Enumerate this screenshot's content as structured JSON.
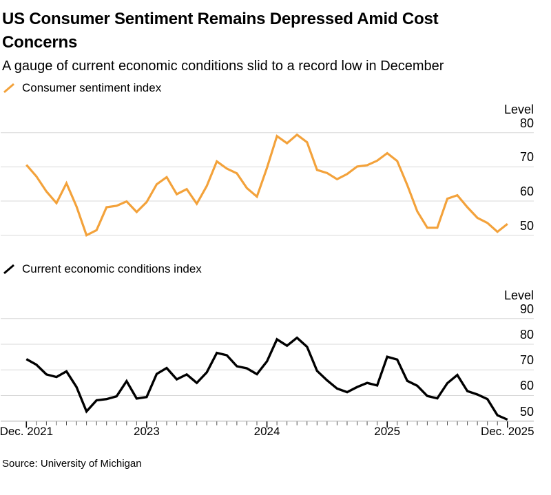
{
  "header": {
    "title": "US Consumer Sentiment Remains Depressed Amid Cost Concerns",
    "subtitle": "A gauge of current economic conditions slid to a record low in December"
  },
  "source": "Source: University of Michigan",
  "colors": {
    "sentiment_line": "#F3A23B",
    "conditions_line": "#000000",
    "gridline": "#D8D8D8",
    "axis_baseline": "#A8A8A8",
    "tick_minor": "#4D4D4D",
    "tick_major": "#111111"
  },
  "chart_data": {
    "type": "line",
    "categories": [
      "Dec 2021",
      "Jan 2022",
      "Feb 2022",
      "Mar 2022",
      "Apr 2022",
      "May 2022",
      "Jun 2022",
      "Jul 2022",
      "Aug 2022",
      "Sep 2022",
      "Oct 2022",
      "Nov 2022",
      "Dec 2022",
      "Jan 2023",
      "Feb 2023",
      "Mar 2023",
      "Apr 2023",
      "May 2023",
      "Jun 2023",
      "Jul 2023",
      "Aug 2023",
      "Sep 2023",
      "Oct 2023",
      "Nov 2023",
      "Dec 2023",
      "Jan 2024",
      "Feb 2024",
      "Mar 2024",
      "Apr 2024",
      "May 2024",
      "Jun 2024",
      "Jul 2024",
      "Aug 2024",
      "Sep 2024",
      "Oct 2024",
      "Nov 2024",
      "Dec 2024",
      "Jan 2025",
      "Feb 2025",
      "Mar 2025",
      "Apr 2025",
      "May 2025",
      "Jun 2025",
      "Jul 2025",
      "Aug 2025",
      "Sep 2025",
      "Oct 2025",
      "Nov 2025",
      "Dec 2025"
    ],
    "x_tick_labels": [
      {
        "label": "Dec. 2021",
        "index": 0
      },
      {
        "label": "2023",
        "index": 12
      },
      {
        "label": "2024",
        "index": 24
      },
      {
        "label": "2025",
        "index": 36
      },
      {
        "label": "Dec. 2025",
        "index": 48
      }
    ],
    "charts": [
      {
        "title": "Consumer sentiment index",
        "ylabel": "Level",
        "yticks": [
          80,
          70,
          60,
          50
        ],
        "ylim": [
          46,
          83
        ],
        "grid": true,
        "legend_position": "top-left",
        "values": [
          70.6,
          67.2,
          62.8,
          59.4,
          65.2,
          58.4,
          50.0,
          51.5,
          58.2,
          58.6,
          59.9,
          56.8,
          59.7,
          64.9,
          67.0,
          62.0,
          63.5,
          59.2,
          64.4,
          71.6,
          69.5,
          68.1,
          63.8,
          61.3,
          69.7,
          79.0,
          76.9,
          79.4,
          77.2,
          69.1,
          68.2,
          66.4,
          67.9,
          70.1,
          70.5,
          71.8,
          74.0,
          71.7,
          64.7,
          57.0,
          52.2,
          52.2,
          60.7,
          61.7,
          58.2,
          55.1,
          53.6,
          51.0,
          53.3
        ]
      },
      {
        "title": "Current economic conditions index",
        "ylabel": "Level",
        "yticks": [
          90,
          80,
          70,
          60,
          50
        ],
        "ylim": [
          50,
          93
        ],
        "grid": true,
        "legend_position": "top-left",
        "values": [
          74.2,
          72.0,
          68.2,
          67.2,
          69.4,
          63.3,
          53.8,
          58.1,
          58.6,
          59.7,
          65.6,
          58.8,
          59.4,
          68.4,
          70.7,
          66.3,
          68.2,
          64.9,
          69.0,
          76.6,
          75.7,
          71.4,
          70.6,
          68.3,
          73.3,
          81.9,
          79.4,
          82.5,
          79.0,
          69.6,
          65.9,
          62.7,
          61.3,
          63.3,
          64.9,
          63.9,
          75.1,
          74.0,
          65.7,
          63.8,
          59.8,
          58.9,
          64.8,
          68.0,
          61.7,
          60.4,
          58.6,
          52.3,
          50.6
        ]
      }
    ]
  }
}
